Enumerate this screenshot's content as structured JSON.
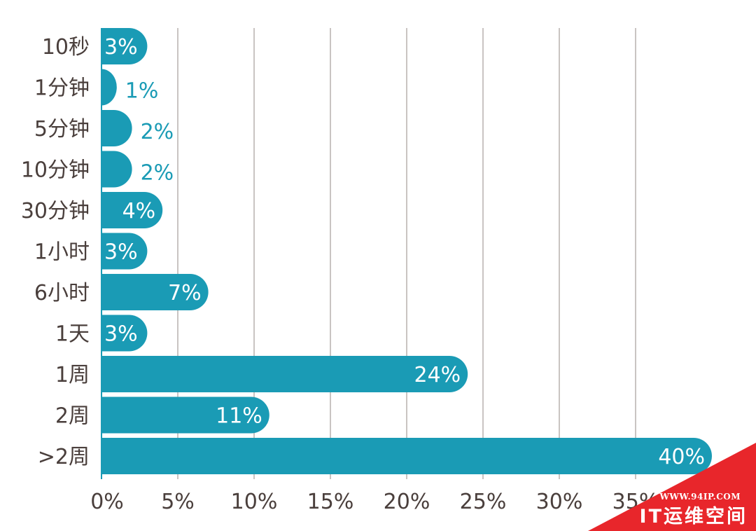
{
  "chart_data": {
    "type": "bar",
    "orientation": "horizontal",
    "categories": [
      "10秒",
      "1分钟",
      "5分钟",
      "10分钟",
      "30分钟",
      "1小时",
      "6小时",
      "1天",
      "1周",
      "2周",
      ">2周"
    ],
    "values": [
      3,
      1,
      2,
      2,
      4,
      3,
      7,
      3,
      24,
      11,
      40
    ],
    "value_labels": [
      "3%",
      "1%",
      "2%",
      "2%",
      "4%",
      "3%",
      "7%",
      "3%",
      "24%",
      "11%",
      "40%"
    ],
    "x_ticks": [
      "0%",
      "5%",
      "10%",
      "15%",
      "20%",
      "25%",
      "30%",
      "35%"
    ],
    "xlim": [
      0,
      40
    ],
    "grid": true,
    "title": "",
    "xlabel": "",
    "ylabel": "",
    "colors": {
      "bar": "#1a9bb5",
      "label_inside": "#ffffff",
      "label_outside": "#1a9bb5",
      "text": "#4a3f3c",
      "grid": "#c9c4c2"
    }
  },
  "watermark": {
    "url": "WWW.94IP.COM",
    "name": "IT运维空间",
    "color": "#e8262b"
  }
}
